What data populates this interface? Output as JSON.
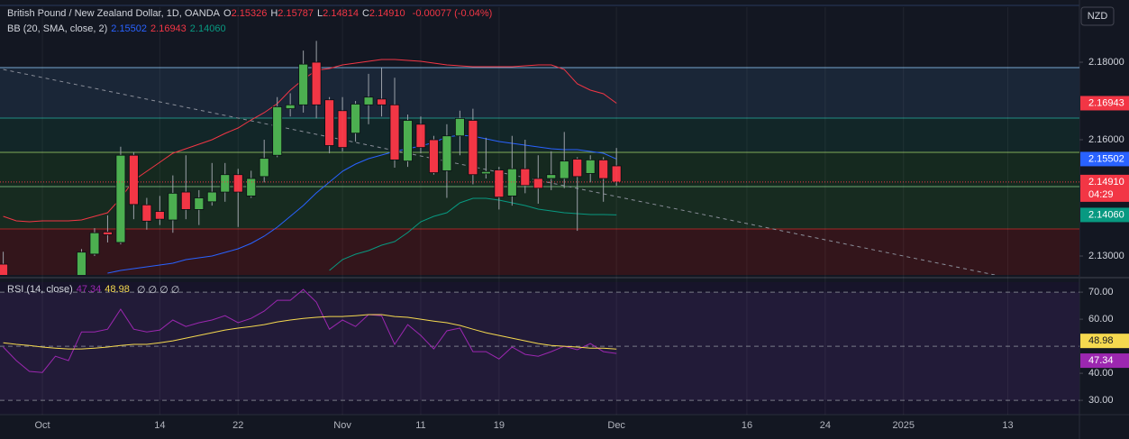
{
  "header": {
    "title": "British Pound / New Zealand Dollar, 1D, OANDA",
    "ohlc": [
      {
        "key": "O",
        "value": "2.15326"
      },
      {
        "key": "H",
        "value": "2.15787"
      },
      {
        "key": "L",
        "value": "2.14814"
      },
      {
        "key": "C",
        "value": "2.14910"
      }
    ],
    "change": "-0.00077 (-0.04%)"
  },
  "currency": "NZD",
  "countdown": "04:29",
  "chart_data": [
    {
      "type": "candlestick",
      "categories": [
        null,
        null,
        null,
        "Oct",
        null,
        null,
        null,
        null,
        null,
        null,
        null,
        null,
        "14",
        null,
        null,
        null,
        null,
        null,
        "22",
        null,
        null,
        null,
        null,
        null,
        null,
        null,
        "Nov",
        null,
        null,
        null,
        null,
        null,
        "11",
        null,
        null,
        null,
        null,
        null,
        "19",
        null,
        null,
        null,
        null,
        null,
        null,
        null,
        null,
        "Dec",
        null,
        null,
        null,
        null,
        null,
        null,
        null,
        null,
        null,
        "16",
        null,
        null,
        null,
        null,
        null,
        "24",
        null,
        null,
        null,
        null,
        null,
        "2025",
        null,
        null,
        null,
        null,
        null,
        null,
        null,
        "13",
        null,
        null,
        null,
        null,
        null
      ],
      "open": [
        2.1279,
        null,
        null,
        null,
        null,
        null,
        2.1248,
        2.1305,
        2.1362,
        2.1335,
        2.156,
        2.1432,
        2.1415,
        2.1393,
        2.1465,
        2.142,
        2.144,
        2.1465,
        2.151,
        2.1455,
        2.1505,
        2.156,
        2.168,
        2.169,
        2.18,
        2.1703,
        2.1675,
        2.1617,
        2.169,
        2.1705,
        2.169,
        2.1545,
        2.164,
        2.16,
        2.152,
        2.161,
        2.165,
        2.1512,
        2.1522,
        2.1455,
        2.1525,
        2.15,
        2.15,
        2.15,
        2.155,
        2.1513,
        2.1548,
        2.15326,
        null,
        null,
        null,
        null,
        null,
        null,
        null,
        null,
        null,
        null,
        null,
        null,
        null,
        null,
        null,
        null,
        null,
        null,
        null,
        null,
        null,
        null,
        null,
        null,
        null,
        null,
        null,
        null,
        null,
        null,
        null,
        null,
        null,
        null,
        null
      ],
      "high": [
        2.1311,
        null,
        null,
        null,
        null,
        null,
        2.1318,
        2.1372,
        2.1405,
        2.1582,
        2.1568,
        2.145,
        2.1455,
        2.1508,
        2.156,
        2.147,
        2.154,
        2.154,
        2.1525,
        2.152,
        2.16,
        2.171,
        2.172,
        2.183,
        2.1855,
        2.171,
        2.171,
        2.17,
        2.177,
        2.1785,
        2.176,
        2.1665,
        2.166,
        2.161,
        2.164,
        2.1675,
        2.168,
        2.1605,
        2.153,
        2.161,
        2.16,
        2.156,
        2.157,
        2.162,
        2.1555,
        2.156,
        2.1555,
        2.15787,
        null,
        null,
        null,
        null,
        null,
        null,
        null,
        null,
        null,
        null,
        null,
        null,
        null,
        null,
        null,
        null,
        null,
        null,
        null,
        null,
        null,
        null,
        null,
        null,
        null,
        null,
        null,
        null,
        null,
        null,
        null,
        null,
        null,
        null,
        null
      ],
      "low": [
        2.124,
        null,
        null,
        null,
        null,
        null,
        2.124,
        2.13,
        2.1335,
        2.133,
        2.1395,
        2.1368,
        2.138,
        2.136,
        2.1395,
        2.138,
        2.143,
        2.144,
        2.1375,
        2.145,
        2.149,
        2.1555,
        2.166,
        2.167,
        2.1655,
        2.1565,
        2.157,
        2.1595,
        2.164,
        2.166,
        2.1528,
        2.153,
        2.1565,
        2.151,
        2.145,
        2.156,
        2.1485,
        2.15,
        2.142,
        2.143,
        2.1462,
        2.1435,
        2.147,
        2.1475,
        2.1365,
        2.149,
        2.144,
        2.14814,
        null,
        null,
        null,
        null,
        null,
        null,
        null,
        null,
        null,
        null,
        null,
        null,
        null,
        null,
        null,
        null,
        null,
        null,
        null,
        null,
        null,
        null,
        null,
        null,
        null,
        null,
        null,
        null,
        null,
        null,
        null,
        null,
        null,
        null,
        null
      ],
      "close": [
        2.1245,
        null,
        null,
        null,
        null,
        null,
        2.131,
        2.136,
        2.1355,
        2.156,
        2.1433,
        2.139,
        2.1395,
        2.1462,
        2.142,
        2.145,
        2.1465,
        2.151,
        2.1465,
        2.15,
        2.1552,
        2.1685,
        2.169,
        2.1795,
        2.169,
        2.1585,
        2.158,
        2.1692,
        2.171,
        2.169,
        2.1548,
        2.165,
        2.158,
        2.1515,
        2.161,
        2.1655,
        2.151,
        2.1518,
        2.1452,
        2.1525,
        2.1482,
        2.1475,
        2.151,
        2.1545,
        2.1505,
        2.1548,
        2.15,
        2.1491,
        null,
        null,
        null,
        null,
        null,
        null,
        null,
        null,
        null,
        null,
        null,
        null,
        null,
        null,
        null,
        null,
        null,
        null,
        null,
        null,
        null,
        null,
        null,
        null,
        null,
        null,
        null,
        null,
        null,
        null,
        null,
        null,
        null,
        null,
        null
      ],
      "up_color": "#4caf50",
      "down_color": "#f23645",
      "legend": "BB (20, SMA, close, 2)",
      "overlays": [
        {
          "color": "#2962ff",
          "legend_label": "2.15502",
          "values": [
            null,
            null,
            null,
            null,
            null,
            null,
            null,
            null,
            2.12558,
            2.12628,
            2.12674,
            2.12721,
            2.12767,
            2.12814,
            2.12907,
            2.12953,
            2.13,
            2.13093,
            2.13186,
            2.13326,
            2.13512,
            2.13744,
            2.14023,
            2.14302,
            2.14628,
            2.14907,
            2.15186,
            2.15372,
            2.15512,
            2.15605,
            2.15698,
            2.15767,
            2.15837,
            2.1593,
            2.1607,
            2.16116,
            2.16093,
            2.16023,
            2.15953,
            2.15907,
            2.1586,
            2.15814,
            2.15767,
            2.15744,
            2.15744,
            2.15698,
            2.15651,
            2.15502,
            null,
            null,
            null,
            null,
            null,
            null,
            null,
            null,
            null,
            null,
            null,
            null,
            null,
            null,
            null,
            null,
            null,
            null,
            null,
            null,
            null,
            null,
            null,
            null,
            null,
            null,
            null,
            null,
            null,
            null,
            null,
            null,
            null,
            null,
            null
          ]
        },
        {
          "color": "#f23645",
          "legend_label": "2.16943",
          "values": [
            2.14023,
            2.13907,
            2.13884,
            2.13907,
            2.13907,
            2.13907,
            2.1393,
            2.14023,
            2.14116,
            2.14488,
            2.14953,
            2.15186,
            2.15419,
            2.15651,
            2.15767,
            2.15884,
            2.16,
            2.16163,
            2.16302,
            2.16512,
            2.16698,
            2.1693,
            2.17279,
            2.17558,
            2.17791,
            2.17837,
            2.1793,
            2.17977,
            2.18023,
            2.1807,
            2.1807,
            2.18047,
            2.18023,
            2.17977,
            2.1793,
            2.17907,
            2.17884,
            2.17884,
            2.17884,
            2.17884,
            2.17907,
            2.1793,
            2.1793,
            2.17814,
            2.17442,
            2.17279,
            2.17186,
            2.16943,
            null,
            null,
            null,
            null,
            null,
            null,
            null,
            null,
            null,
            null,
            null,
            null,
            null,
            null,
            null,
            null,
            null,
            null,
            null,
            null,
            null,
            null,
            null,
            null,
            null,
            null,
            null,
            null,
            null,
            null,
            null,
            null,
            null,
            null,
            null
          ]
        },
        {
          "color": "#089981",
          "legend_label": "2.14060",
          "values": [
            null,
            null,
            null,
            null,
            null,
            null,
            null,
            null,
            null,
            null,
            null,
            null,
            null,
            null,
            null,
            null,
            null,
            null,
            null,
            null,
            null,
            null,
            null,
            null,
            null,
            2.12628,
            2.12907,
            2.13047,
            2.1314,
            2.13279,
            2.13372,
            2.13605,
            2.13884,
            2.14023,
            2.14116,
            2.14372,
            2.14488,
            2.14488,
            2.14442,
            2.14372,
            2.14302,
            2.14209,
            2.14163,
            2.14116,
            2.14093,
            2.1407,
            2.1407,
            2.1406,
            null,
            null,
            null,
            null,
            null,
            null,
            null,
            null,
            null,
            null,
            null,
            null,
            null,
            null,
            null,
            null,
            null,
            null,
            null,
            null,
            null,
            null,
            null,
            null,
            null,
            null,
            null,
            null,
            null,
            null,
            null,
            null,
            null,
            null,
            null
          ]
        }
      ],
      "ylim": [
        2.12512,
        2.19419
      ],
      "yticks": [
        {
          "value": 2.18,
          "label": "2.18000"
        },
        {
          "value": 2.16,
          "label": "2.16000"
        },
        {
          "value": 2.13,
          "label": "2.13000"
        }
      ],
      "levels": [
        {
          "value": 2.1786,
          "color": "#90caf9",
          "fill": "#1a2637"
        },
        {
          "value": 2.16558,
          "color": "#26a69a",
          "fill": "#122628"
        },
        {
          "value": 2.15674,
          "color": "#9ccc65",
          "fill": "#15291f"
        },
        {
          "value": 2.14791,
          "color": "#81c784",
          "fill": "#172b20"
        },
        {
          "value": 2.13698,
          "color": "#c62828",
          "fill": "#33151b"
        }
      ],
      "trendline": {
        "x": [
          0,
          76
        ],
        "y": [
          2.17814,
          2.12512
        ],
        "color": "#8a8e99"
      }
    },
    {
      "type": "line",
      "name": "RSI (14, close)",
      "extra_label": "∅ ∅ ∅ ∅",
      "series": [
        {
          "color": "#9c27b0",
          "legend_label": "47.34",
          "values": [
            49.7,
            44.7,
            40.7,
            40.3,
            46.3,
            44.7,
            55.3,
            55.3,
            56.3,
            63.7,
            56.3,
            55.3,
            56.0,
            59.7,
            57.3,
            58.7,
            59.7,
            61.3,
            58.7,
            60.3,
            63.0,
            67.0,
            67.0,
            71.0,
            66.3,
            56.3,
            59.7,
            57.3,
            61.7,
            61.3,
            50.7,
            58.0,
            54.0,
            49.0,
            55.7,
            56.7,
            48.0,
            48.0,
            45.3,
            49.7,
            47.0,
            46.3,
            48.0,
            50.0,
            48.7,
            51.0,
            48.0,
            47.34,
            null,
            null,
            null,
            null,
            null,
            null,
            null,
            null,
            null,
            null,
            null,
            null,
            null,
            null,
            null,
            null,
            null,
            null,
            null,
            null,
            null,
            null,
            null,
            null,
            null,
            null,
            null,
            null,
            null,
            null,
            null,
            null,
            null,
            null,
            null
          ]
        },
        {
          "color": "#f5d94f",
          "legend_label": "48.98",
          "values": [
            51.3,
            50.7,
            50.3,
            49.7,
            49.3,
            49.0,
            49.0,
            49.3,
            49.7,
            50.3,
            50.7,
            50.7,
            51.3,
            52.0,
            53.0,
            54.0,
            55.0,
            56.0,
            56.7,
            57.3,
            58.0,
            59.0,
            59.7,
            60.3,
            60.7,
            61.0,
            61.0,
            61.3,
            61.7,
            61.7,
            61.0,
            60.7,
            60.0,
            59.3,
            58.7,
            57.7,
            56.3,
            55.0,
            54.0,
            53.0,
            52.0,
            51.0,
            50.3,
            50.0,
            49.7,
            49.3,
            49.3,
            48.98,
            null,
            null,
            null,
            null,
            null,
            null,
            null,
            null,
            null,
            null,
            null,
            null,
            null,
            null,
            null,
            null,
            null,
            null,
            null,
            null,
            null,
            null,
            null,
            null,
            null,
            null,
            null,
            null,
            null,
            null,
            null,
            null,
            null,
            null,
            null
          ]
        }
      ],
      "ylim": [
        24.7,
        73.7
      ],
      "yticks": [
        {
          "value": 70,
          "label": "70.00"
        },
        {
          "value": 60,
          "label": "60.00"
        },
        {
          "value": 40,
          "label": "40.00"
        },
        {
          "value": 30,
          "label": "30.00"
        }
      ],
      "bands": [
        70,
        50,
        30
      ]
    }
  ]
}
